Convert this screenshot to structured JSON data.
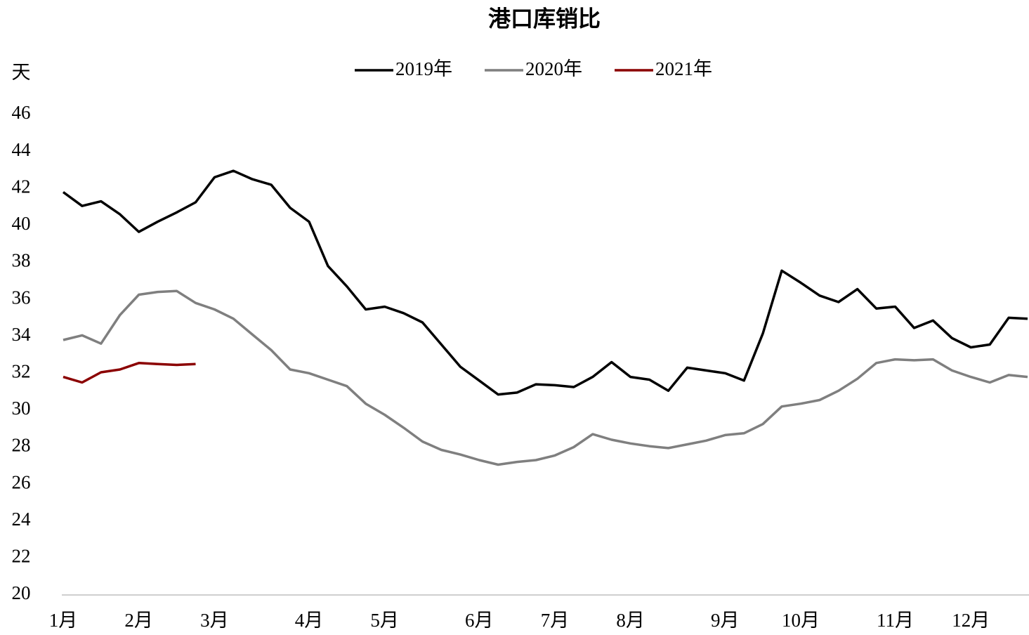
{
  "chart_data": {
    "type": "line",
    "title": "港口库销比",
    "y_label": "天",
    "categories": [
      "1月",
      null,
      null,
      null,
      "2月",
      null,
      null,
      null,
      "3月",
      null,
      null,
      null,
      null,
      "4月",
      null,
      null,
      null,
      "5月",
      null,
      null,
      null,
      null,
      "6月",
      null,
      null,
      null,
      "7月",
      null,
      null,
      null,
      "8月",
      null,
      null,
      null,
      null,
      "9月",
      null,
      null,
      null,
      "10月",
      null,
      null,
      null,
      null,
      "11月",
      null,
      null,
      null,
      "12月",
      null,
      null,
      null
    ],
    "series": [
      {
        "name": "2019年",
        "color": "#000000",
        "values": [
          41.8,
          41.05,
          41.3,
          40.6,
          39.65,
          40.2,
          40.7,
          41.25,
          42.6,
          42.95,
          42.5,
          42.2,
          40.95,
          40.2,
          37.8,
          36.7,
          35.45,
          35.6,
          35.25,
          34.75,
          33.55,
          32.35,
          31.6,
          30.85,
          30.95,
          31.4,
          31.35,
          31.25,
          31.8,
          32.6,
          31.8,
          31.65,
          31.05,
          32.3,
          32.15,
          32.0,
          31.6,
          34.15,
          37.55,
          36.9,
          36.2,
          35.85,
          36.55,
          35.5,
          35.6,
          34.45,
          34.85,
          33.9,
          33.4,
          33.55,
          35.0,
          34.95
        ]
      },
      {
        "name": "2020年",
        "color": "#7f7f7f",
        "values": [
          33.8,
          34.05,
          33.6,
          35.15,
          36.25,
          36.4,
          36.45,
          35.8,
          35.45,
          34.95,
          34.1,
          33.25,
          32.2,
          32.0,
          31.65,
          31.3,
          30.35,
          29.75,
          29.05,
          28.3,
          27.85,
          27.6,
          27.3,
          27.05,
          27.2,
          27.3,
          27.55,
          28.0,
          28.7,
          28.4,
          28.2,
          28.05,
          27.95,
          28.15,
          28.35,
          28.65,
          28.75,
          29.25,
          30.2,
          30.35,
          30.55,
          31.05,
          31.7,
          32.55,
          32.75,
          32.7,
          32.75,
          32.15,
          31.8,
          31.5,
          31.9,
          31.8
        ]
      },
      {
        "name": "2021年",
        "color": "#8b0000",
        "values": [
          31.8,
          31.5,
          32.05,
          32.2,
          32.55,
          32.5,
          32.45,
          32.5,
          null,
          null,
          null,
          null,
          null,
          null,
          null,
          null,
          null,
          null,
          null,
          null,
          null,
          null,
          null,
          null,
          null,
          null,
          null,
          null,
          null,
          null,
          null,
          null,
          null,
          null,
          null,
          null,
          null,
          null,
          null,
          null,
          null,
          null,
          null,
          null,
          null,
          null,
          null,
          null,
          null,
          null,
          null,
          null
        ]
      }
    ],
    "ylim": [
      20,
      46
    ],
    "yticks": [
      20,
      22,
      24,
      26,
      28,
      30,
      32,
      34,
      36,
      38,
      40,
      42,
      44,
      46
    ],
    "grid": false,
    "legend": "top"
  }
}
